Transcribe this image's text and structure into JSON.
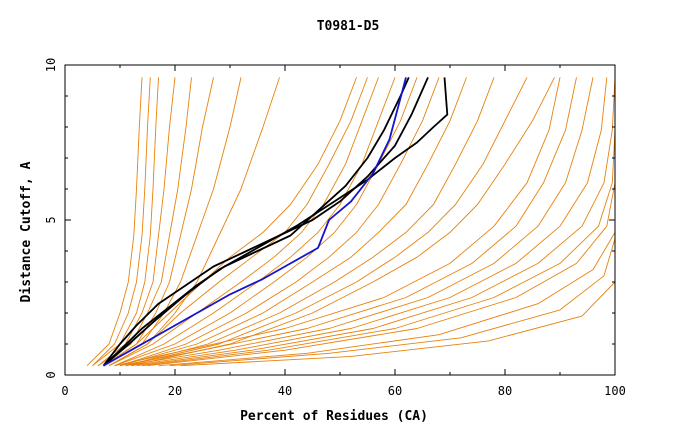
{
  "chart_data": {
    "type": "line",
    "title": "T0981-D5",
    "xlabel": "Percent of Residues (CA)",
    "ylabel": "Distance Cutoff, A",
    "xlim": [
      0,
      100
    ],
    "ylim": [
      0,
      10
    ],
    "xticks": [
      "0",
      "20",
      "40",
      "60",
      "80",
      "100"
    ],
    "yticks": [
      "0",
      "5",
      "10"
    ],
    "colors": {
      "background_series": "#e8820c",
      "highlight_dark": "#000000",
      "highlight_blue": "#1414cc"
    },
    "series": [
      {
        "name": "highlight-1",
        "color": "#000000",
        "x": [
          7,
          10,
          14,
          19,
          24,
          29,
          35,
          41,
          46,
          51,
          55,
          58,
          61,
          62.5
        ],
        "y": [
          0.3,
          0.8,
          1.5,
          2.2,
          2.9,
          3.5,
          4.0,
          4.5,
          5.3,
          6.1,
          7.0,
          7.9,
          9.0,
          9.6
        ]
      },
      {
        "name": "highlight-2",
        "color": "#000000",
        "x": [
          7,
          10,
          13,
          17,
          22,
          27,
          33,
          39,
          45,
          50,
          55,
          60,
          63,
          66
        ],
        "y": [
          0.3,
          1.0,
          1.6,
          2.3,
          2.9,
          3.5,
          4.0,
          4.5,
          5.0,
          5.6,
          6.4,
          7.4,
          8.4,
          9.6
        ]
      },
      {
        "name": "highlight-3",
        "color": "#000000",
        "x": [
          7,
          11,
          16,
          22,
          28,
          35,
          42,
          49,
          55,
          60,
          64,
          67,
          69.5,
          69
        ],
        "y": [
          0.3,
          0.9,
          1.7,
          2.6,
          3.4,
          4.1,
          4.8,
          5.6,
          6.3,
          7.0,
          7.5,
          8.0,
          8.4,
          9.6
        ]
      },
      {
        "name": "highlight-blue",
        "color": "#1414cc",
        "x": [
          7,
          12,
          18,
          24,
          30,
          36,
          41,
          46,
          48,
          52,
          56,
          59,
          62
        ],
        "y": [
          0.3,
          0.8,
          1.4,
          2.0,
          2.6,
          3.1,
          3.6,
          4.1,
          5.0,
          5.6,
          6.5,
          7.6,
          9.6
        ]
      },
      {
        "name": "group-a-1",
        "color": "#e8820c",
        "x": [
          4,
          8,
          10,
          11.5,
          12.5,
          13,
          13.5,
          14
        ],
        "y": [
          0.3,
          1.0,
          2.0,
          3.0,
          4.5,
          6.0,
          8.0,
          9.6
        ]
      },
      {
        "name": "group-a-2",
        "color": "#e8820c",
        "x": [
          5,
          9,
          11.5,
          13,
          14,
          14.5,
          15,
          15.5
        ],
        "y": [
          0.3,
          1.0,
          2.0,
          3.0,
          4.5,
          6.0,
          8.0,
          9.6
        ]
      },
      {
        "name": "group-a-3",
        "color": "#e8820c",
        "x": [
          5,
          10,
          13,
          14.5,
          15.5,
          16,
          16.5,
          17
        ],
        "y": [
          0.3,
          1.0,
          2.0,
          3.0,
          4.5,
          6.0,
          8.0,
          9.6
        ]
      },
      {
        "name": "group-a-4",
        "color": "#e8820c",
        "x": [
          6,
          11,
          14,
          16,
          17,
          18,
          19,
          20
        ],
        "y": [
          0.3,
          1.0,
          2.0,
          3.0,
          4.5,
          6.0,
          8.0,
          9.6
        ]
      },
      {
        "name": "group-a-5",
        "color": "#e8820c",
        "x": [
          6,
          12,
          15,
          17.5,
          19,
          20.5,
          22,
          23
        ],
        "y": [
          0.3,
          1.0,
          2.0,
          3.0,
          4.5,
          6.0,
          8.0,
          9.6
        ]
      },
      {
        "name": "group-a-6",
        "color": "#e8820c",
        "x": [
          7,
          13,
          16.5,
          19,
          21,
          23,
          25,
          27
        ],
        "y": [
          0.3,
          1.0,
          2.0,
          3.0,
          4.5,
          6.0,
          8.0,
          9.6
        ]
      },
      {
        "name": "group-a-7",
        "color": "#e8820c",
        "x": [
          7,
          14,
          18,
          21,
          24,
          27,
          30,
          32
        ],
        "y": [
          0.3,
          1.0,
          2.0,
          3.0,
          4.5,
          6.0,
          8.0,
          9.6
        ]
      },
      {
        "name": "group-a-8",
        "color": "#e8820c",
        "x": [
          8,
          15,
          20,
          24,
          28,
          32,
          36,
          39
        ],
        "y": [
          0.3,
          1.0,
          2.0,
          3.0,
          4.5,
          6.0,
          8.0,
          9.6
        ]
      },
      {
        "name": "group-b-1",
        "color": "#e8820c",
        "x": [
          7,
          13,
          19,
          25,
          30,
          36,
          41,
          46,
          50,
          53
        ],
        "y": [
          0.3,
          1.0,
          2.0,
          3.0,
          3.8,
          4.6,
          5.5,
          6.8,
          8.2,
          9.6
        ]
      },
      {
        "name": "group-b-2",
        "color": "#e8820c",
        "x": [
          8,
          15,
          21,
          28,
          34,
          40,
          44,
          48,
          52,
          55
        ],
        "y": [
          0.3,
          1.0,
          2.0,
          3.0,
          3.8,
          4.6,
          5.5,
          6.8,
          8.2,
          9.6
        ]
      },
      {
        "name": "group-b-3",
        "color": "#e8820c",
        "x": [
          8,
          16,
          24,
          32,
          38,
          43,
          47,
          51,
          54,
          57
        ],
        "y": [
          0.3,
          1.0,
          2.0,
          3.0,
          3.8,
          4.6,
          5.5,
          6.8,
          8.2,
          9.6
        ]
      },
      {
        "name": "group-b-4",
        "color": "#e8820c",
        "x": [
          9,
          18,
          27,
          35,
          41,
          46,
          50,
          54,
          57,
          60
        ],
        "y": [
          0.3,
          1.0,
          2.0,
          3.0,
          3.8,
          4.6,
          5.5,
          6.8,
          8.2,
          9.6
        ]
      },
      {
        "name": "group-b-5",
        "color": "#e8820c",
        "x": [
          9,
          20,
          30,
          38,
          44,
          49,
          53,
          57,
          61,
          64
        ],
        "y": [
          0.3,
          1.0,
          2.0,
          3.0,
          3.8,
          4.6,
          5.5,
          6.8,
          8.2,
          9.6
        ]
      },
      {
        "name": "group-b-6",
        "color": "#e8820c",
        "x": [
          10,
          22,
          33,
          42,
          48,
          53,
          57,
          61,
          65,
          68
        ],
        "y": [
          0.3,
          1.0,
          2.0,
          3.0,
          3.8,
          4.6,
          5.5,
          6.8,
          8.2,
          9.6
        ]
      },
      {
        "name": "group-b-7",
        "color": "#e8820c",
        "x": [
          10,
          24,
          36,
          45,
          52,
          57,
          62,
          66,
          70,
          73
        ],
        "y": [
          0.3,
          1.0,
          2.0,
          3.0,
          3.8,
          4.6,
          5.5,
          6.8,
          8.2,
          9.6
        ]
      },
      {
        "name": "group-b-8",
        "color": "#e8820c",
        "x": [
          11,
          26,
          39,
          49,
          56,
          62,
          67,
          71,
          75,
          78
        ],
        "y": [
          0.3,
          1.0,
          2.0,
          3.0,
          3.8,
          4.6,
          5.5,
          6.8,
          8.2,
          9.6
        ]
      },
      {
        "name": "group-b-9",
        "color": "#e8820c",
        "x": [
          11,
          28,
          42,
          53,
          60,
          66,
          71,
          76,
          80,
          84
        ],
        "y": [
          0.3,
          1.0,
          2.0,
          3.0,
          3.8,
          4.6,
          5.5,
          6.8,
          8.2,
          9.6
        ]
      },
      {
        "name": "group-b-10",
        "color": "#e8820c",
        "x": [
          12,
          30,
          45,
          56,
          64,
          70,
          75,
          80,
          85,
          89
        ],
        "y": [
          0.3,
          1.0,
          2.0,
          3.0,
          3.8,
          4.6,
          5.5,
          6.8,
          8.2,
          9.6
        ]
      },
      {
        "name": "group-c-1",
        "color": "#e8820c",
        "x": [
          9,
          22,
          40,
          58,
          70,
          78,
          84,
          88,
          90
        ],
        "y": [
          0.3,
          0.8,
          1.5,
          2.5,
          3.6,
          4.8,
          6.2,
          7.9,
          9.6
        ]
      },
      {
        "name": "group-c-2",
        "color": "#e8820c",
        "x": [
          10,
          25,
          44,
          62,
          74,
          82,
          87,
          91,
          93
        ],
        "y": [
          0.3,
          0.8,
          1.5,
          2.5,
          3.6,
          4.8,
          6.2,
          7.9,
          9.6
        ]
      },
      {
        "name": "group-c-3",
        "color": "#e8820c",
        "x": [
          11,
          28,
          48,
          66,
          78,
          86,
          91,
          94,
          96
        ],
        "y": [
          0.3,
          0.8,
          1.5,
          2.5,
          3.6,
          4.8,
          6.2,
          7.9,
          9.6
        ]
      },
      {
        "name": "group-c-4",
        "color": "#e8820c",
        "x": [
          12,
          31,
          52,
          70,
          82,
          90,
          95,
          97.5,
          98.5
        ],
        "y": [
          0.3,
          0.8,
          1.5,
          2.5,
          3.6,
          4.8,
          6.2,
          7.9,
          9.6
        ]
      },
      {
        "name": "group-c-5",
        "color": "#e8820c",
        "x": [
          13,
          34,
          56,
          74,
          86,
          94,
          98,
          99.5,
          100
        ],
        "y": [
          0.3,
          0.8,
          1.5,
          2.5,
          3.6,
          4.8,
          6.2,
          7.9,
          9.6
        ]
      },
      {
        "name": "group-c-6",
        "color": "#e8820c",
        "x": [
          14,
          37,
          60,
          78,
          90,
          97,
          99.5,
          100,
          100
        ],
        "y": [
          0.3,
          0.8,
          1.5,
          2.5,
          3.6,
          4.8,
          6.2,
          7.9,
          9.6
        ]
      },
      {
        "name": "group-c-7",
        "color": "#e8820c",
        "x": [
          15,
          40,
          64,
          82,
          93,
          98.5,
          100,
          100,
          100
        ],
        "y": [
          0.3,
          0.8,
          1.5,
          2.5,
          3.6,
          4.8,
          6.2,
          7.9,
          9.6
        ]
      },
      {
        "name": "group-c-8",
        "color": "#e8820c",
        "x": [
          17,
          44,
          68,
          86,
          96,
          100,
          100,
          100,
          100
        ],
        "y": [
          0.3,
          0.7,
          1.3,
          2.3,
          3.4,
          4.6,
          6.0,
          7.8,
          9.6
        ]
      },
      {
        "name": "group-c-9",
        "color": "#e8820c",
        "x": [
          19,
          48,
          72,
          90,
          98,
          100,
          100,
          100,
          100
        ],
        "y": [
          0.3,
          0.7,
          1.2,
          2.1,
          3.2,
          4.4,
          5.9,
          7.7,
          9.6
        ]
      },
      {
        "name": "group-c-10",
        "color": "#e8820c",
        "x": [
          21,
          52,
          77,
          94,
          100,
          100,
          100,
          100,
          100
        ],
        "y": [
          0.3,
          0.6,
          1.1,
          1.9,
          3.0,
          4.3,
          5.8,
          7.6,
          9.6
        ]
      }
    ]
  }
}
